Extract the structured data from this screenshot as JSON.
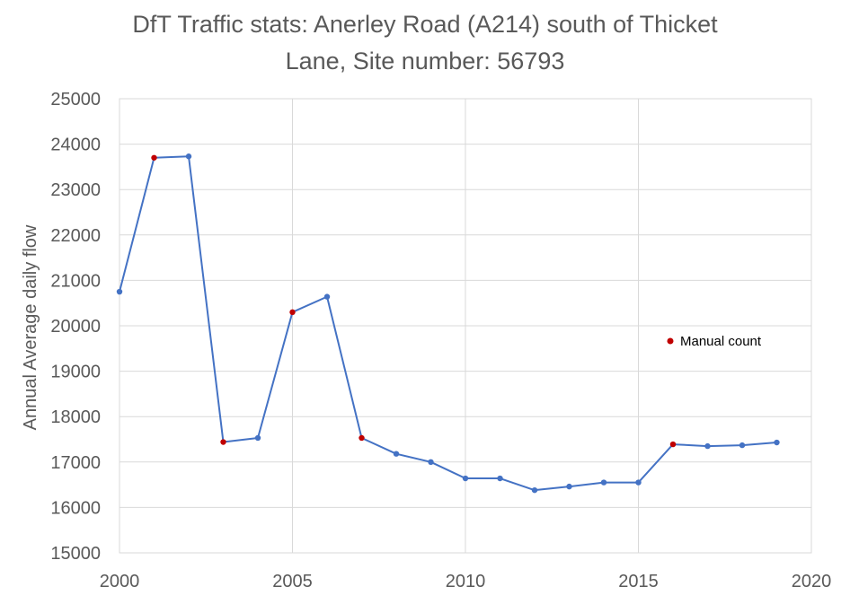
{
  "chart_data": {
    "type": "line",
    "title_lines": [
      "DfT Traffic stats: Anerley Road (A214) south of Thicket",
      "Lane, Site number: 56793"
    ],
    "xlabel": "",
    "ylabel": "Annual Average daily flow",
    "xlim": [
      2000,
      2020
    ],
    "ylim": [
      15000,
      25000
    ],
    "x_ticks": [
      2000,
      2005,
      2010,
      2015,
      2020
    ],
    "y_ticks": [
      15000,
      16000,
      17000,
      18000,
      19000,
      20000,
      21000,
      22000,
      23000,
      24000,
      25000
    ],
    "grid": true,
    "legend_position": "right",
    "series": [
      {
        "color": "#4472C4",
        "points": [
          {
            "x": 2000,
            "y": 20750
          },
          {
            "x": 2001,
            "y": 23700
          },
          {
            "x": 2002,
            "y": 23730
          },
          {
            "x": 2003,
            "y": 17440
          },
          {
            "x": 2004,
            "y": 17530
          },
          {
            "x": 2005,
            "y": 20300
          },
          {
            "x": 2006,
            "y": 20640
          },
          {
            "x": 2007,
            "y": 17530
          },
          {
            "x": 2008,
            "y": 17180
          },
          {
            "x": 2009,
            "y": 17000
          },
          {
            "x": 2010,
            "y": 16640
          },
          {
            "x": 2011,
            "y": 16640
          },
          {
            "x": 2012,
            "y": 16380
          },
          {
            "x": 2013,
            "y": 16460
          },
          {
            "x": 2014,
            "y": 16550
          },
          {
            "x": 2015,
            "y": 16550
          },
          {
            "x": 2016,
            "y": 17390
          },
          {
            "x": 2017,
            "y": 17350
          },
          {
            "x": 2018,
            "y": 17370
          },
          {
            "x": 2019,
            "y": 17430
          }
        ]
      }
    ],
    "highlighted": {
      "name": "Manual count",
      "color": "#C00000",
      "x": [
        2001,
        2003,
        2005,
        2007,
        2016
      ]
    }
  }
}
